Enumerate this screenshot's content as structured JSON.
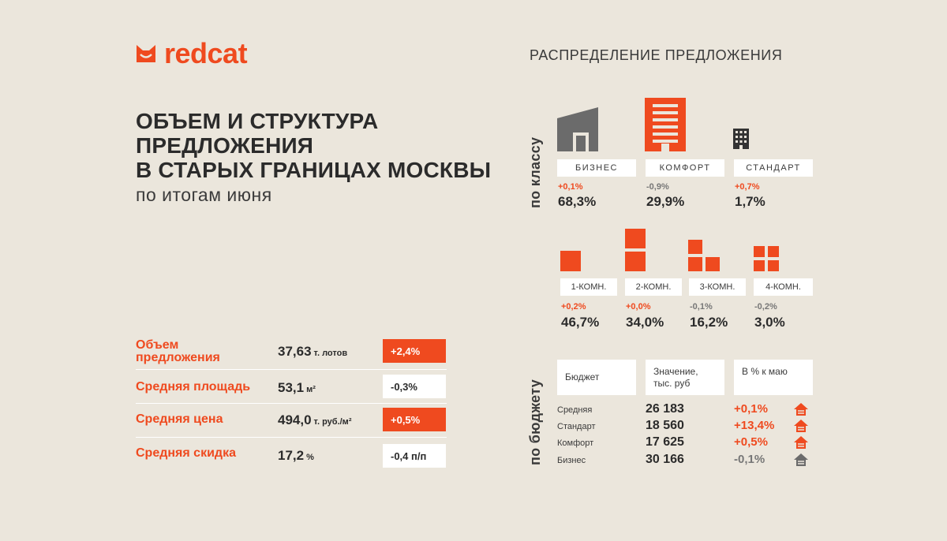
{
  "brand": {
    "name": "redcat",
    "accent_color": "#ef4a1f",
    "logo_icon": "cat-ears-icon"
  },
  "headline": {
    "lines": [
      "ОБЪЕМ И СТРУКТУРА",
      "ПРЕДЛОЖЕНИЯ",
      "В СТАРЫХ ГРАНИЦАХ МОСКВЫ"
    ],
    "subtitle": "по итогам июня"
  },
  "distribution_title": "РАСПРЕДЕЛЕНИЕ ПРЕДЛОЖЕНИЯ",
  "stats": [
    {
      "label": "Объем предложения",
      "value": "37,63",
      "unit": "т. лотов",
      "change": "+2,4%",
      "direction": "up"
    },
    {
      "label": "Средняя площадь",
      "value": "53,1",
      "unit": "м²",
      "change": "-0,3%",
      "direction": "down"
    },
    {
      "label": "Средняя цена",
      "value": "494,0",
      "unit": "т. руб./м²",
      "change": "+0,5%",
      "direction": "up"
    },
    {
      "label": "Средняя скидка",
      "value": "17,2",
      "unit": "%",
      "change": "-0,4 п/п",
      "direction": "down"
    }
  ],
  "by_class": {
    "axis_label": "по классу",
    "items": [
      {
        "label": "БИЗНЕС",
        "change": "+0,1%",
        "share": "68,3%",
        "direction": "up",
        "icon": "business-building-icon",
        "icon_color": "#6b6b6b"
      },
      {
        "label": "КОМФОРТ",
        "change": "-0,9%",
        "share": "29,9%",
        "direction": "down",
        "icon": "comfort-building-icon",
        "icon_color": "#ef4a1f"
      },
      {
        "label": "СТАНДАРТ",
        "change": "+0,7%",
        "share": "1,7%",
        "direction": "up",
        "icon": "standard-building-icon",
        "icon_color": "#333333"
      }
    ]
  },
  "by_rooms": {
    "items": [
      {
        "label": "1-КОМН.",
        "change": "+0,2%",
        "share": "46,7%",
        "direction": "up",
        "icon": "one-room-icon"
      },
      {
        "label": "2-КОМН.",
        "change": "+0,0%",
        "share": "34,0%",
        "direction": "up",
        "icon": "two-room-icon"
      },
      {
        "label": "3-КОМН.",
        "change": "-0,1%",
        "share": "16,2%",
        "direction": "down",
        "icon": "three-room-icon"
      },
      {
        "label": "4-КОМН.",
        "change": "-0,2%",
        "share": "3,0%",
        "direction": "down",
        "icon": "four-room-icon"
      }
    ]
  },
  "by_budget": {
    "axis_label": "по бюджету",
    "headers": [
      "Бюджет",
      "Значение, тыс. руб",
      "В % к маю"
    ],
    "rows": [
      {
        "label": "Средняя",
        "value": "26 183",
        "change": "+0,1%",
        "direction": "up",
        "icon": "house-up-icon"
      },
      {
        "label": "Стандарт",
        "value": "18 560",
        "change": "+13,4%",
        "direction": "up",
        "icon": "house-up-icon"
      },
      {
        "label": "Комфорт",
        "value": "17 625",
        "change": "+0,5%",
        "direction": "up",
        "icon": "house-up-icon"
      },
      {
        "label": "Бизнес",
        "value": "30 166",
        "change": "-0,1%",
        "direction": "down",
        "icon": "house-down-icon"
      }
    ]
  }
}
